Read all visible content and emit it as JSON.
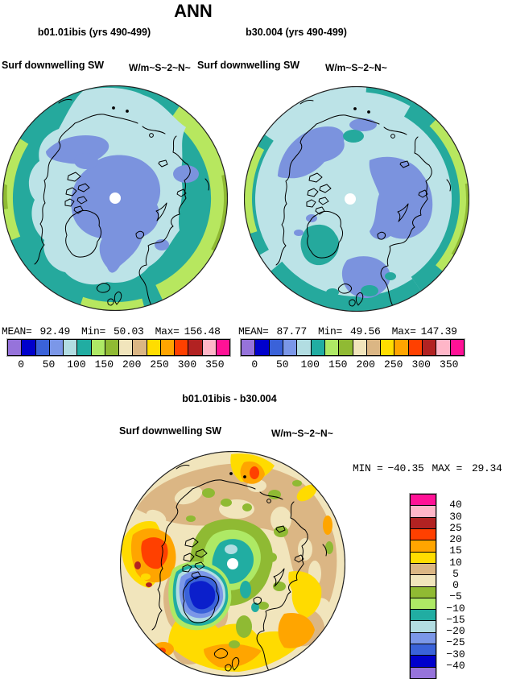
{
  "figure_title": "ANN",
  "panels": [
    {
      "title": "b01.01ibis (yrs 490-499)",
      "field_label": "Surf downwelling SW",
      "units": "W/m~S~2~N~",
      "stats": {
        "mean_label": "MEAN=",
        "mean": "92.49",
        "min_label": "Min=",
        "min": "50.03",
        "max_label": "Max=",
        "max": "156.48"
      }
    },
    {
      "title": "b30.004 (yrs 490-499)",
      "field_label": "Surf downwelling SW",
      "units": "W/m~S~2~N~",
      "stats": {
        "mean_label": "MEAN=",
        "mean": "87.77",
        "min_label": "Min=",
        "min": "49.56",
        "max_label": "Max=",
        "max": "147.39"
      }
    }
  ],
  "colorbar": {
    "colors": [
      "#9673DB",
      "#0000CC",
      "#3A62D9",
      "#7B97E8",
      "#B2DDE2",
      "#21ADA2",
      "#AEE965",
      "#90BA33",
      "#F1E5BC",
      "#DBB684",
      "#FFDD00",
      "#FFA500",
      "#FF4000",
      "#B22222",
      "#FFB6C8",
      "#FF1296"
    ],
    "tick_labels": [
      "0",
      "50",
      "100",
      "150",
      "200",
      "250",
      "300",
      "350"
    ]
  },
  "diff": {
    "title": "b01.01ibis - b30.004",
    "field_label": "Surf downwelling SW",
    "units": "W/m~S~2~N~",
    "stats": {
      "min_label": "MIN =",
      "min": "−40.35",
      "max_label": "MAX =",
      "max": "29.34"
    },
    "colorbar": {
      "colors": [
        "#FF1296",
        "#FFB6C8",
        "#B22222",
        "#FF4000",
        "#FFA500",
        "#FFDD00",
        "#DBB684",
        "#F1E5BC",
        "#90BA33",
        "#AEE965",
        "#21ADA2",
        "#B2DDE2",
        "#7B97E8",
        "#3A62D9",
        "#0000CC",
        "#9673DB"
      ],
      "labels": [
        "40",
        "30",
        "25",
        "20",
        "15",
        "10",
        "5",
        "0",
        "−5",
        "−10",
        "−15",
        "−20",
        "−25",
        "−30",
        "−40"
      ]
    }
  },
  "chart_data": [
    {
      "type": "heatmap",
      "title": "b01.01ibis (yrs 490-499)",
      "variable": "Surf downwelling SW",
      "units": "W/m~S~2~N~",
      "projection": "north polar stereographic",
      "stats": {
        "mean": 92.49,
        "min": 50.03,
        "max": 156.48
      },
      "contour_levels": [
        0,
        25,
        50,
        75,
        100,
        125,
        150,
        175,
        200,
        225,
        250,
        275,
        300,
        325,
        350
      ],
      "legend_position": "below",
      "palette": [
        "#9673DB",
        "#0000CC",
        "#3A62D9",
        "#7B97E8",
        "#B2DDE2",
        "#21ADA2",
        "#AEE965",
        "#90BA33",
        "#F1E5BC",
        "#DBB684",
        "#FFDD00",
        "#FFA500",
        "#FF4000",
        "#B22222",
        "#FFB6C8",
        "#FF1296"
      ]
    },
    {
      "type": "heatmap",
      "title": "b30.004 (yrs 490-499)",
      "variable": "Surf downwelling SW",
      "units": "W/m~S~2~N~",
      "projection": "north polar stereographic",
      "stats": {
        "mean": 87.77,
        "min": 49.56,
        "max": 147.39
      },
      "contour_levels": [
        0,
        25,
        50,
        75,
        100,
        125,
        150,
        175,
        200,
        225,
        250,
        275,
        300,
        325,
        350
      ],
      "legend_position": "below",
      "palette": [
        "#9673DB",
        "#0000CC",
        "#3A62D9",
        "#7B97E8",
        "#B2DDE2",
        "#21ADA2",
        "#AEE965",
        "#90BA33",
        "#F1E5BC",
        "#DBB684",
        "#FFDD00",
        "#FFA500",
        "#FF4000",
        "#B22222",
        "#FFB6C8",
        "#FF1296"
      ]
    },
    {
      "type": "heatmap",
      "title": "b01.01ibis - b30.004",
      "variable": "Surf downwelling SW",
      "units": "W/m~S~2~N~",
      "projection": "north polar stereographic",
      "stats": {
        "min": -40.35,
        "max": 29.34
      },
      "contour_levels": [
        -40,
        -30,
        -25,
        -20,
        -15,
        -10,
        -5,
        0,
        5,
        10,
        15,
        20,
        25,
        30,
        40
      ],
      "legend_position": "right",
      "palette": [
        "#9673DB",
        "#0000CC",
        "#3A62D9",
        "#7B97E8",
        "#B2DDE2",
        "#21ADA2",
        "#AEE965",
        "#90BA33",
        "#F1E5BC",
        "#DBB684",
        "#FFDD00",
        "#FFA500",
        "#FF4000",
        "#B22222",
        "#FFB6C8",
        "#FF1296"
      ]
    }
  ]
}
